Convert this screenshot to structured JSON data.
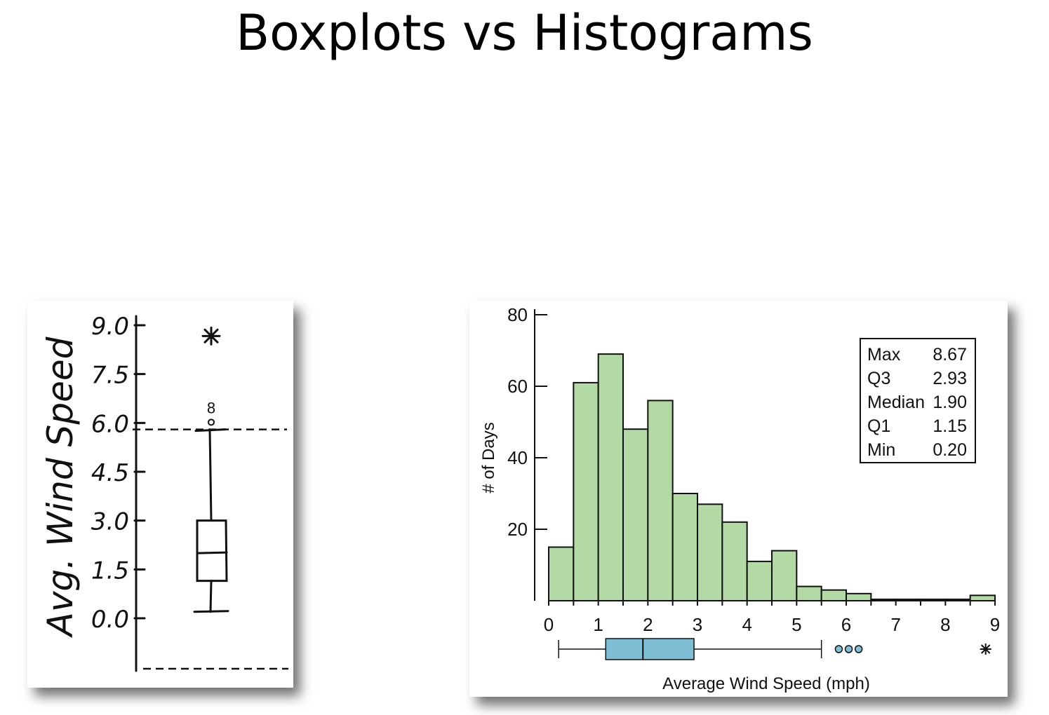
{
  "slide": {
    "title": "Boxplots vs Histograms"
  },
  "chart_data": [
    {
      "type": "boxplot",
      "style": "hand-drawn",
      "ylabel": "Avg. Wind Speed",
      "ylim": [
        0,
        9
      ],
      "yticks": [
        "9.0",
        "7.5",
        "6.0",
        "4.5",
        "3.0",
        "1.5",
        "0.0"
      ],
      "ytick_values": [
        9.0,
        7.5,
        6.0,
        4.5,
        3.0,
        1.5,
        0.0
      ],
      "box": {
        "whisker_low": 0.2,
        "q1": 1.15,
        "median": 2.0,
        "q3": 3.0,
        "whisker_high": 5.8
      },
      "fences": [
        5.8,
        -1.6
      ],
      "outliers": [
        {
          "value": 6.0,
          "symbol": "circle",
          "label": "8"
        },
        {
          "value": 8.67,
          "symbol": "asterisk",
          "label": ""
        }
      ]
    },
    {
      "type": "bar",
      "subtype": "histogram",
      "xlabel": "Average Wind Speed (mph)",
      "ylabel": "# of Days",
      "xlim": [
        0,
        9
      ],
      "ylim": [
        0,
        80
      ],
      "xticks": [
        "0",
        "1",
        "2",
        "3",
        "4",
        "5",
        "6",
        "7",
        "8",
        "9"
      ],
      "xtick_values": [
        0,
        1,
        2,
        3,
        4,
        5,
        6,
        7,
        8,
        9
      ],
      "yticks": [
        "20",
        "40",
        "60",
        "80"
      ],
      "ytick_values": [
        20,
        40,
        60,
        80
      ],
      "bin_width": 0.5,
      "bin_starts": [
        0,
        0.5,
        1,
        1.5,
        2,
        2.5,
        3,
        3.5,
        4,
        4.5,
        5,
        5.5,
        6,
        6.5,
        7,
        7.5,
        8,
        8.5
      ],
      "counts": [
        15,
        61,
        69,
        48,
        56,
        30,
        27,
        22,
        11,
        14,
        4,
        3,
        2,
        0.4,
        0.4,
        0.4,
        0.4,
        1.5
      ],
      "bar_color": "#b3d9a5",
      "box_color": "#7fbfd6",
      "boxplot": {
        "whisker_low": 0.2,
        "q1": 1.15,
        "median": 1.9,
        "q3": 2.93,
        "whisker_high": 5.5,
        "outliers_circle": [
          5.85,
          6.05,
          6.25
        ],
        "outliers_star": [
          8.67
        ]
      },
      "stats_table": [
        {
          "label": "Max",
          "value": "8.67"
        },
        {
          "label": "Q3",
          "value": "2.93"
        },
        {
          "label": "Median",
          "value": "1.90"
        },
        {
          "label": "Q1",
          "value": "1.15"
        },
        {
          "label": "Min",
          "value": "0.20"
        }
      ]
    }
  ]
}
